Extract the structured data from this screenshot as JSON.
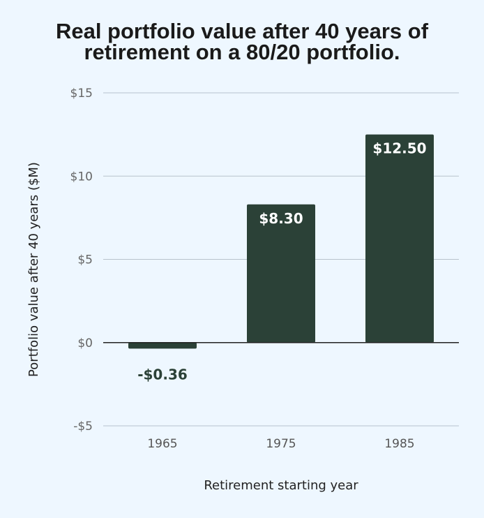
{
  "chart_data": {
    "type": "bar",
    "title_lines": [
      "Real portfolio value after 40 years of",
      "retirement on a 80/20 portfolio."
    ],
    "xlabel": "Retirement starting year",
    "ylabel": "Portfolio value after 40 years ($M)",
    "categories": [
      "1965",
      "1975",
      "1985"
    ],
    "values": [
      -0.36,
      8.3,
      12.5
    ],
    "data_labels": [
      "-$0.36",
      "$8.30",
      "$12.50"
    ],
    "ylim": [
      -5,
      15
    ],
    "yticks": [
      15,
      10,
      5,
      0,
      -5
    ],
    "ytick_labels": [
      "$15",
      "$10",
      "$5",
      "$0",
      "-$5"
    ],
    "grid": true,
    "colors": {
      "bar": "#2b4137",
      "label_inside": "#ffffff",
      "label_outside": "#2b4137",
      "grid": "#b7c2cc",
      "zero_line": "#222222",
      "background": "#eef7ff"
    }
  }
}
